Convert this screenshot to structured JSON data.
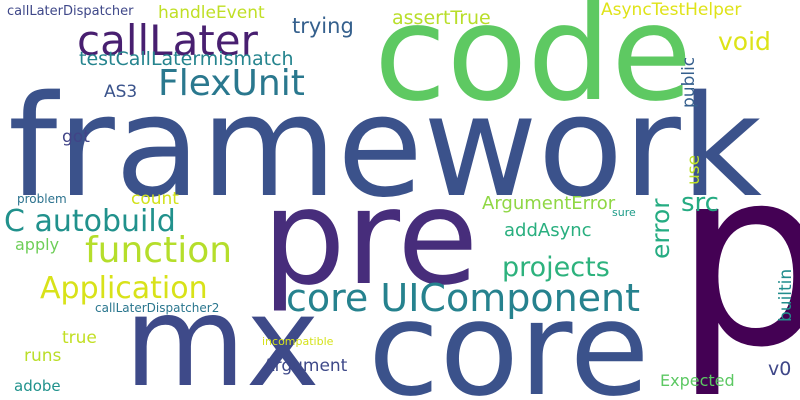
{
  "palette": {
    "purple": "#481f70",
    "indigo": "#3e4a89",
    "slate": "#3b528b",
    "blue": "#31688e",
    "teal": "#26828e",
    "aqua": "#1f9e89",
    "green": "#35b779",
    "lime": "#6ece58",
    "chartreuse": "#b5de2b",
    "yellow": "#fde725",
    "darkpurple": "#440154"
  },
  "words": [
    {
      "id": "framework",
      "text": "framework",
      "color": "#3b528b"
    },
    {
      "id": "code-top",
      "text": "code",
      "color": "#5ec962"
    },
    {
      "id": "pre",
      "text": "pre",
      "color": "#472d7b"
    },
    {
      "id": "p",
      "text": "p",
      "color": "#440154"
    },
    {
      "id": "mx",
      "text": "mx",
      "color": "#3e4a89"
    },
    {
      "id": "core-bottom",
      "text": "core",
      "color": "#3b528b"
    },
    {
      "id": "core-uicomponent",
      "text": "core UIComponent",
      "color": "#26828e"
    },
    {
      "id": "calllater",
      "text": "callLater",
      "color": "#481f70"
    },
    {
      "id": "flexunit",
      "text": "FlexUnit",
      "color": "#2a788e"
    },
    {
      "id": "function",
      "text": "function",
      "color": "#b5de2b"
    },
    {
      "id": "application",
      "text": "Application",
      "color": "#d8e219"
    },
    {
      "id": "c-autobuild",
      "text": "C autobuild",
      "color": "#21918c"
    },
    {
      "id": "projects",
      "text": "projects",
      "color": "#2db27d"
    },
    {
      "id": "void",
      "text": "void",
      "color": "#dde318"
    },
    {
      "id": "src",
      "text": "src",
      "color": "#25ab82"
    },
    {
      "id": "testcalllatermismatch",
      "text": "testCallLatermismatch",
      "color": "#25848e"
    },
    {
      "id": "trying",
      "text": "trying",
      "color": "#35608d"
    },
    {
      "id": "asserttrue",
      "text": "assertTrue",
      "color": "#b8de29"
    },
    {
      "id": "asynctesthelper",
      "text": "AsyncTestHelper",
      "color": "#dfe318"
    },
    {
      "id": "handleevent",
      "text": "handleEvent",
      "color": "#c0df25"
    },
    {
      "id": "calllaterdispatcher",
      "text": "callLaterDispatcher",
      "color": "#3f4889"
    },
    {
      "id": "argumenterror",
      "text": "ArgumentError",
      "color": "#8fd744"
    },
    {
      "id": "addasync",
      "text": "addAsync",
      "color": "#29af7f"
    },
    {
      "id": "count",
      "text": "count",
      "color": "#d2e21b"
    },
    {
      "id": "apply",
      "text": "apply",
      "color": "#6ece58"
    },
    {
      "id": "problem",
      "text": "problem",
      "color": "#2c728e"
    },
    {
      "id": "as3",
      "text": "AS3",
      "color": "#3a538b"
    },
    {
      "id": "got",
      "text": "got",
      "color": "#414487"
    },
    {
      "id": "error",
      "text": "error",
      "color": "#25ac82"
    },
    {
      "id": "public",
      "text": "public",
      "color": "#355f8d"
    },
    {
      "id": "use",
      "text": "use",
      "color": "#bddf26"
    },
    {
      "id": "sure",
      "text": "sure",
      "color": "#1e9c89"
    },
    {
      "id": "true",
      "text": "true",
      "color": "#c2df23"
    },
    {
      "id": "runs",
      "text": "runs",
      "color": "#bade28"
    },
    {
      "id": "adobe",
      "text": "adobe",
      "color": "#20928c"
    },
    {
      "id": "argument",
      "text": "Argument",
      "color": "#3e4989"
    },
    {
      "id": "incompatible",
      "text": "incompatible",
      "color": "#d5e21a"
    },
    {
      "id": "calllaterdispatcher2",
      "text": "callLaterDispatcher2",
      "color": "#2a768e"
    },
    {
      "id": "builtin",
      "text": "builtin",
      "color": "#228d8d"
    },
    {
      "id": "expected",
      "text": "Expected",
      "color": "#5cc863"
    },
    {
      "id": "v0",
      "text": "v0",
      "color": "#3f4788"
    }
  ]
}
